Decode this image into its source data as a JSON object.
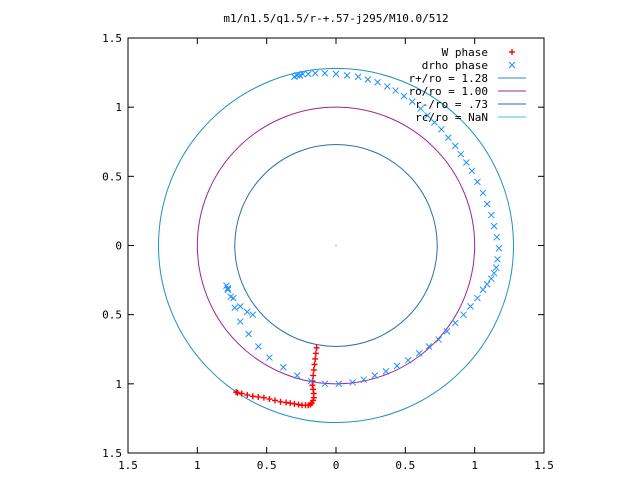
{
  "chart_data": {
    "type": "scatter",
    "title": "m1/n1.5/q1.5/r-+.57-j295/M10.0/512",
    "xlim": [
      -1.5,
      1.5
    ],
    "ylim": [
      -1.5,
      1.5
    ],
    "x_ticks": [
      -1.5,
      -1,
      -0.5,
      0,
      0.5,
      1,
      1.5
    ],
    "x_tick_labels": [
      "1.5",
      "1",
      "0.5",
      "0",
      "0.5",
      "1",
      "1.5"
    ],
    "y_ticks": [
      1.5,
      1,
      0.5,
      0,
      -0.5,
      -1,
      -1.5
    ],
    "y_tick_labels": [
      "1.5",
      "1",
      "0.5",
      "0",
      "0.5",
      "1",
      "1.5"
    ],
    "grid": false,
    "legend_position": "top-right",
    "series": [
      {
        "name": "W phase",
        "kind": "points",
        "marker": "+",
        "color": "#ff0000",
        "x": [
          -0.14,
          -0.145,
          -0.15,
          -0.155,
          -0.16,
          -0.165,
          -0.17,
          -0.17,
          -0.165,
          -0.16,
          -0.16,
          -0.165,
          -0.175,
          -0.185,
          -0.2,
          -0.22,
          -0.245,
          -0.27,
          -0.3,
          -0.33,
          -0.36,
          -0.4,
          -0.44,
          -0.48,
          -0.52,
          -0.56,
          -0.6,
          -0.64,
          -0.68,
          -0.71,
          -0.72
        ],
        "y": [
          -0.74,
          -0.78,
          -0.82,
          -0.86,
          -0.9,
          -0.94,
          -0.98,
          -1.01,
          -1.04,
          -1.07,
          -1.1,
          -1.12,
          -1.14,
          -1.15,
          -1.155,
          -1.155,
          -1.155,
          -1.15,
          -1.145,
          -1.14,
          -1.135,
          -1.13,
          -1.12,
          -1.11,
          -1.1,
          -1.095,
          -1.09,
          -1.08,
          -1.07,
          -1.065,
          -1.06
        ]
      },
      {
        "name": "drho phase",
        "kind": "points",
        "marker": "x",
        "color": "#1e90ff",
        "x": [
          -0.3,
          -0.28,
          -0.26,
          -0.24,
          -0.2,
          -0.15,
          -0.08,
          0.0,
          0.08,
          0.16,
          0.23,
          0.3,
          0.37,
          0.43,
          0.49,
          0.55,
          0.61,
          0.66,
          0.71,
          0.76,
          0.81,
          0.86,
          0.9,
          0.94,
          0.98,
          1.02,
          1.06,
          1.09,
          1.12,
          1.14,
          1.16,
          1.175,
          1.165,
          1.155,
          1.14,
          1.12,
          1.09,
          1.06,
          1.02,
          0.97,
          0.92,
          0.86,
          0.8,
          0.74,
          0.67,
          0.6,
          0.52,
          0.44,
          0.36,
          0.28,
          0.2,
          0.12,
          0.02,
          -0.08,
          -0.18,
          -0.28,
          -0.38,
          -0.48,
          -0.56,
          -0.63,
          -0.69,
          -0.73,
          -0.76,
          -0.78,
          -0.79,
          -0.78,
          -0.74,
          -0.69,
          -0.64,
          -0.6
        ],
        "y": [
          1.22,
          1.23,
          1.23,
          1.24,
          1.24,
          1.245,
          1.245,
          1.24,
          1.23,
          1.22,
          1.2,
          1.18,
          1.15,
          1.12,
          1.08,
          1.04,
          0.99,
          0.94,
          0.89,
          0.84,
          0.78,
          0.72,
          0.66,
          0.6,
          0.54,
          0.46,
          0.38,
          0.3,
          0.22,
          0.14,
          0.06,
          -0.02,
          -0.1,
          -0.16,
          -0.2,
          -0.24,
          -0.28,
          -0.32,
          -0.38,
          -0.44,
          -0.5,
          -0.56,
          -0.62,
          -0.68,
          -0.73,
          -0.78,
          -0.83,
          -0.87,
          -0.91,
          -0.94,
          -0.97,
          -0.99,
          -1.0,
          -1.0,
          -0.98,
          -0.94,
          -0.88,
          -0.81,
          -0.73,
          -0.64,
          -0.55,
          -0.45,
          -0.37,
          -0.31,
          -0.29,
          -0.32,
          -0.38,
          -0.44,
          -0.48,
          -0.5
        ]
      },
      {
        "name": "r+/ro = 1.28",
        "kind": "circle",
        "radius": 1.28,
        "color": "#1e90c8"
      },
      {
        "name": "ro/ro = 1.00",
        "kind": "circle",
        "radius": 1.0,
        "color": "#a020a0"
      },
      {
        "name": "r-/ro = .73",
        "kind": "circle",
        "radius": 0.73,
        "color": "#2a6fb0"
      },
      {
        "name": "rc/ro = NaN",
        "kind": "circle",
        "radius": null,
        "color": "#40c0e0"
      }
    ]
  }
}
